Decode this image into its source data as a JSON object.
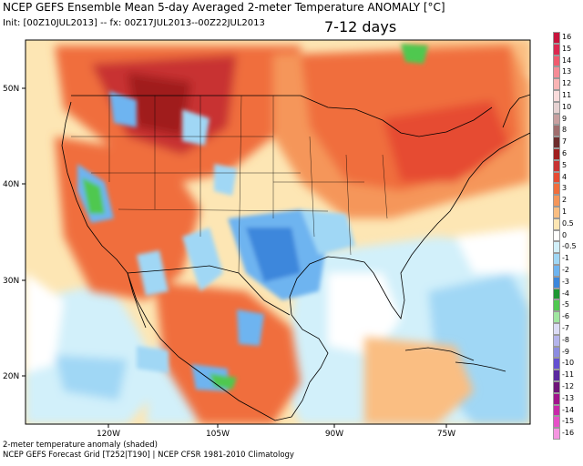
{
  "header": {
    "title": "NCEP GEFS Ensemble Mean 5-day Averaged 2-meter Temperature ANOMALY [°C]",
    "init_line": "Init: [00Z10JUL2013] -- fx: 00Z17JUL2013--00Z22JUL2013",
    "range_label": "7-12 days"
  },
  "footer": {
    "line1": "2-meter temperature anomaly (shaded)",
    "line2": "NCEP GEFS Forecast Grid [T252|T190] | NCEP CFSR 1981-2010 Climatology"
  },
  "axes": {
    "lat_labels": [
      "50N",
      "40N",
      "30N",
      "20N"
    ],
    "lon_labels": [
      "120W",
      "105W",
      "90W",
      "75W"
    ]
  },
  "legend": [
    {
      "label": "16",
      "color": "#c8143c"
    },
    {
      "label": "15",
      "color": "#dc2850"
    },
    {
      "label": "14",
      "color": "#f05a6e"
    },
    {
      "label": "13",
      "color": "#f58c96"
    },
    {
      "label": "12",
      "color": "#fab4b4"
    },
    {
      "label": "11",
      "color": "#fadcdc"
    },
    {
      "label": "10",
      "color": "#e6d2d2"
    },
    {
      "label": "9",
      "color": "#c8a0a0"
    },
    {
      "label": "8",
      "color": "#a06e6e"
    },
    {
      "label": "7",
      "color": "#6e2d2d"
    },
    {
      "label": "6",
      "color": "#a01e1e"
    },
    {
      "label": "5",
      "color": "#c83232"
    },
    {
      "label": "4",
      "color": "#e64b32"
    },
    {
      "label": "3",
      "color": "#f06e3c"
    },
    {
      "label": "2",
      "color": "#f5965a"
    },
    {
      "label": "1",
      "color": "#fabe82"
    },
    {
      "label": "0.5",
      "color": "#fde6b4"
    },
    {
      "label": "0",
      "color": "#ffffff"
    },
    {
      "label": "-0.5",
      "color": "#d2f0fa"
    },
    {
      "label": "-1",
      "color": "#a0d7f5"
    },
    {
      "label": "-2",
      "color": "#6eb4f0"
    },
    {
      "label": "-3",
      "color": "#3c87dc"
    },
    {
      "label": "-4",
      "color": "#1e9632"
    },
    {
      "label": "-5",
      "color": "#50c850"
    },
    {
      "label": "-6",
      "color": "#a0e6a0"
    },
    {
      "label": "-7",
      "color": "#dcdcf5"
    },
    {
      "label": "-8",
      "color": "#b4b4eb"
    },
    {
      "label": "-9",
      "color": "#8c8ce1"
    },
    {
      "label": "-10",
      "color": "#6450d2"
    },
    {
      "label": "-11",
      "color": "#5a28a0"
    },
    {
      "label": "-12",
      "color": "#6e1478"
    },
    {
      "label": "-13",
      "color": "#a0148c"
    },
    {
      "label": "-14",
      "color": "#c828aa"
    },
    {
      "label": "-15",
      "color": "#e650c8"
    },
    {
      "label": "-16",
      "color": "#f596e1"
    }
  ]
}
